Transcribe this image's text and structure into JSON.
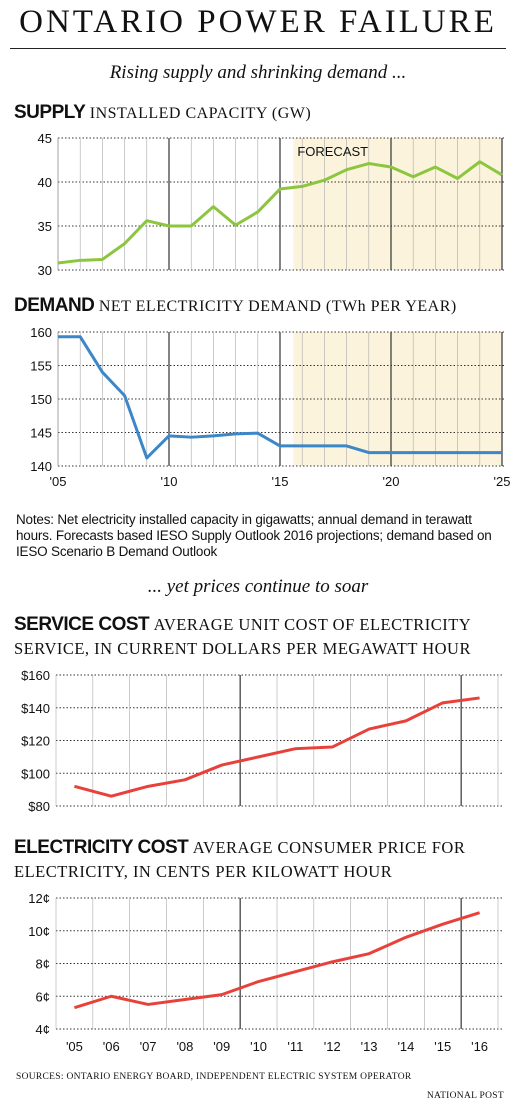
{
  "title": "ONTARIO POWER FAILURE",
  "tagline_top": "Rising supply and shrinking demand ...",
  "tagline_mid": "... yet prices continue to soar",
  "supply_heading": {
    "bold": "SUPPLY",
    "light": "INSTALLED CAPACITY (GW)"
  },
  "demand_heading": {
    "bold": "DEMAND",
    "light": "NET ELECTRICITY DEMAND (TWh PER YEAR)"
  },
  "service_heading": {
    "bold": "SERVICE COST",
    "light": "AVERAGE UNIT COST OF ELECTRICITY SERVICE, IN CURRENT DOLLARS PER MEGAWATT HOUR"
  },
  "electricity_heading": {
    "bold": "ELECTRICITY COST",
    "light": "AVERAGE CONSUMER PRICE FOR ELECTRICITY, IN CENTS PER KILOWATT HOUR"
  },
  "notes": "Notes: Net electricity installed capacity in gigawatts; annual demand in terawatt hours. Forecasts based IESO Supply Outlook 2016 projections; demand based on IESO  Scenario B Demand Outlook",
  "sources": "SOURCES: ONTARIO ENERGY BOARD, INDEPENDENT ELECTRIC SYSTEM OPERATOR",
  "credit": "NATIONAL POST",
  "colors": {
    "supply_line": "#8cc63f",
    "demand_line": "#3b87c8",
    "cost_line": "#e8413a",
    "forecast_fill": "#fbf3dc"
  },
  "chart_data": [
    {
      "id": "supply",
      "type": "line",
      "x": [
        2005,
        2006,
        2007,
        2008,
        2009,
        2010,
        2011,
        2012,
        2013,
        2014,
        2015,
        2016,
        2017,
        2018,
        2019,
        2020,
        2021,
        2022,
        2023,
        2024,
        2025
      ],
      "series": [
        {
          "values": [
            30.8,
            31.1,
            31.2,
            33.0,
            35.6,
            35.0,
            35.0,
            37.2,
            35.1,
            36.6,
            39.2,
            39.5,
            40.2,
            41.4,
            42.1,
            41.7,
            40.6,
            41.7,
            40.4,
            42.3,
            40.8
          ]
        }
      ],
      "ylim": [
        30,
        45
      ],
      "yticks": [
        30,
        35,
        40,
        45
      ],
      "ytick_labels": [
        "30",
        "35",
        "40",
        "45"
      ],
      "forecast_start": 2015.6,
      "forecast_label": "FORECAST",
      "grid": true
    },
    {
      "id": "demand",
      "type": "line",
      "x": [
        2005,
        2006,
        2007,
        2008,
        2009,
        2010,
        2011,
        2012,
        2013,
        2014,
        2015,
        2016,
        2017,
        2018,
        2019,
        2020,
        2021,
        2022,
        2023,
        2024,
        2025
      ],
      "series": [
        {
          "values": [
            159.3,
            159.3,
            154.0,
            150.5,
            141.2,
            144.5,
            144.3,
            144.5,
            144.8,
            144.9,
            143.0,
            143.0,
            143.0,
            143.0,
            142.0,
            142.0,
            142.0,
            142.0,
            142.0,
            142.0,
            142.0
          ]
        }
      ],
      "ylim": [
        140,
        160
      ],
      "yticks": [
        140,
        145,
        150,
        155,
        160
      ],
      "ytick_labels": [
        "140",
        "145",
        "150",
        "155",
        "160"
      ],
      "xtick_values": [
        2005,
        2010,
        2015,
        2020,
        2025
      ],
      "xtick_labels": [
        "'05",
        "'10",
        "'15",
        "'20",
        "'25"
      ],
      "forecast_start": 2015.6,
      "grid": true
    },
    {
      "id": "service",
      "type": "line",
      "categories": [
        "'05",
        "'06",
        "'07",
        "'08",
        "'09",
        "'10",
        "'11",
        "'12",
        "'13",
        "'14",
        "'15",
        "'16"
      ],
      "series": [
        {
          "values": [
            92,
            86,
            92,
            96,
            105,
            110,
            115,
            116,
            127,
            132,
            143,
            146
          ]
        }
      ],
      "ylim": [
        80,
        160
      ],
      "yticks": [
        80,
        100,
        120,
        140,
        160
      ],
      "ytick_labels": [
        "$80",
        "$100",
        "$120",
        "$140",
        "$160"
      ],
      "grid": true
    },
    {
      "id": "electricity",
      "type": "line",
      "categories": [
        "'05",
        "'06",
        "'07",
        "'08",
        "'09",
        "'10",
        "'11",
        "'12",
        "'13",
        "'14",
        "'15",
        "'16"
      ],
      "series": [
        {
          "values": [
            5.3,
            6.0,
            5.5,
            5.8,
            6.1,
            6.9,
            7.5,
            8.1,
            8.6,
            9.6,
            10.4,
            11.1
          ]
        }
      ],
      "ylim": [
        4,
        12
      ],
      "yticks": [
        4,
        6,
        8,
        10,
        12
      ],
      "ytick_labels": [
        "4¢",
        "6¢",
        "8¢",
        "10¢",
        "12¢"
      ],
      "grid": true
    }
  ]
}
